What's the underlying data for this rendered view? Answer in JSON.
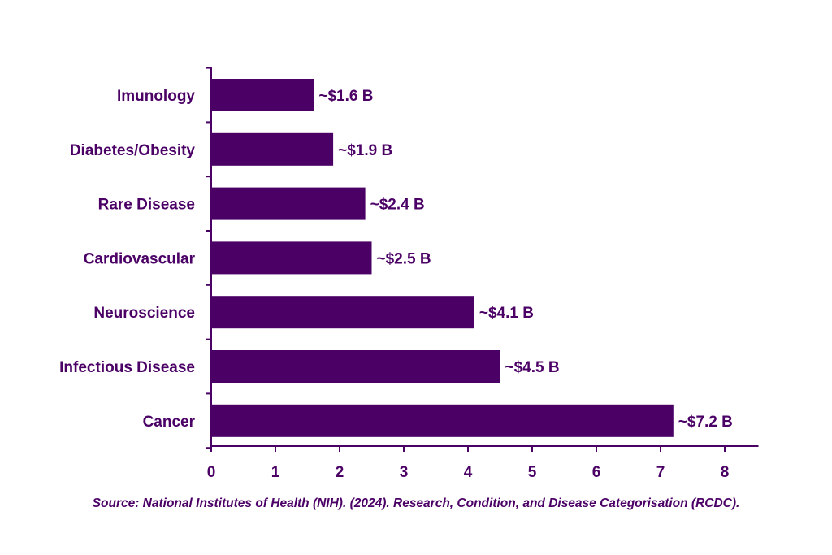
{
  "chart_data": {
    "type": "bar",
    "orientation": "horizontal",
    "categories": [
      "Imunology",
      "Diabetes/Obesity",
      "Rare Disease",
      "Cardiovascular",
      "Neuroscience",
      "Infectious Disease",
      "Cancer"
    ],
    "values": [
      1.6,
      1.9,
      2.4,
      2.5,
      4.1,
      4.5,
      7.2
    ],
    "data_labels": [
      "~$1.6 B",
      "~$1.9 B",
      "~$2.4 B",
      "~$2.5 B",
      "~$4.1 B",
      "~$4.5 B",
      "~$7.2 B"
    ],
    "xlim": [
      0,
      8.5
    ],
    "xticks": [
      0,
      1,
      2,
      3,
      4,
      5,
      6,
      7,
      8
    ],
    "grid": false,
    "legend": "none",
    "bar_color": "#4B0066",
    "text_color": "#4B0066",
    "axis_color": "#4B0066"
  },
  "source_note": "Source: National Institutes of Health (NIH). (2024). Research, Condition, and Disease Categorisation (RCDC)."
}
